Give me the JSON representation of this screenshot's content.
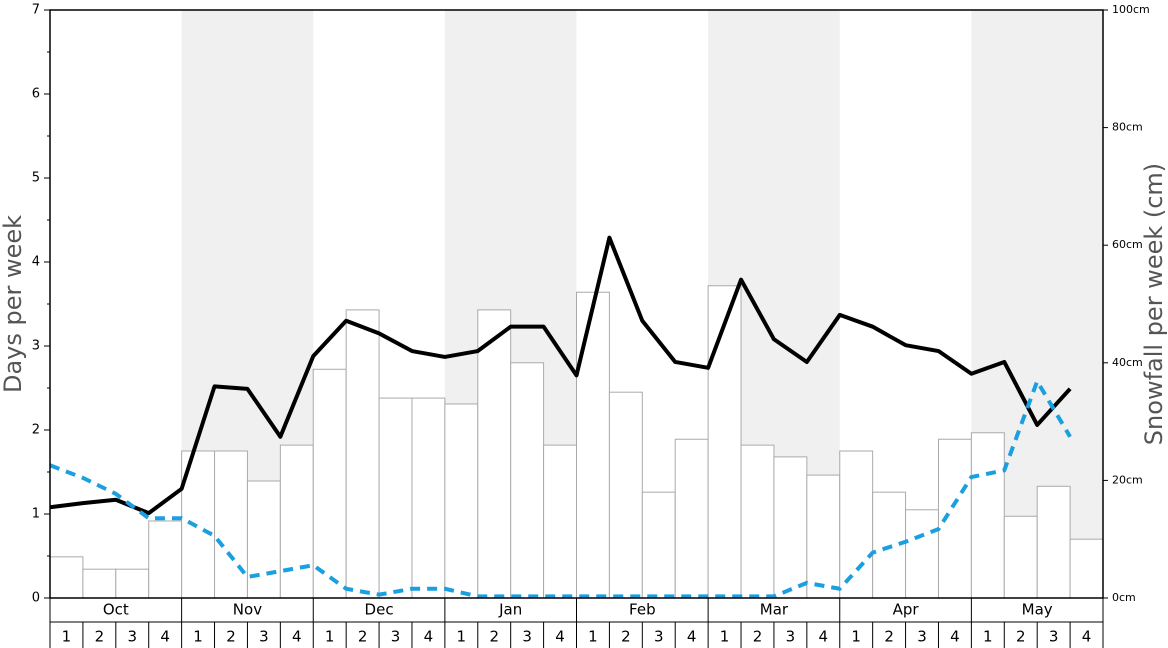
{
  "chart_data": {
    "type": "bar",
    "y_label": "Days per week",
    "y2_label": "Snowfall per week (cm)",
    "months": [
      "Oct",
      "Nov",
      "Dec",
      "Jan",
      "Feb",
      "Mar",
      "Apr",
      "May"
    ],
    "categories": [
      "1",
      "2",
      "3",
      "4",
      "1",
      "2",
      "3",
      "4",
      "1",
      "2",
      "3",
      "4",
      "1",
      "2",
      "3",
      "4",
      "1",
      "2",
      "3",
      "4",
      "1",
      "2",
      "3",
      "4",
      "1",
      "2",
      "3",
      "4",
      "1",
      "2",
      "3",
      "4"
    ],
    "ylim": [
      0,
      7
    ],
    "yticks": [
      0,
      1,
      2,
      3,
      4,
      5,
      6,
      7
    ],
    "y2lim": [
      0,
      100
    ],
    "y2ticks": [
      {
        "value": 0,
        "label": "0cm"
      },
      {
        "value": 20,
        "label": "20cm"
      },
      {
        "value": 40,
        "label": "40cm"
      },
      {
        "value": 60,
        "label": "60cm"
      },
      {
        "value": 80,
        "label": "80cm"
      },
      {
        "value": 100,
        "label": "100cm"
      }
    ],
    "series": [
      {
        "type": "bar",
        "axis": "y2",
        "color": "#ffffff",
        "values": [
          7.0,
          4.9,
          4.9,
          13.1,
          25.0,
          25.0,
          19.9,
          26.0,
          38.9,
          49.0,
          34.0,
          34.0,
          33.0,
          49.0,
          40.0,
          26.0,
          52.0,
          35.0,
          18.0,
          27.0,
          53.1,
          26.0,
          24.0,
          20.9,
          25.0,
          18.0,
          15.0,
          27.0,
          28.1,
          13.9,
          19.0,
          10.0
        ]
      },
      {
        "type": "line",
        "color": "#000000",
        "values": [
          1.08,
          1.13,
          1.17,
          1.01,
          1.3,
          2.52,
          2.49,
          1.92,
          2.88,
          3.3,
          3.15,
          2.94,
          2.87,
          2.94,
          3.23,
          3.23,
          2.65,
          4.29,
          3.3,
          2.81,
          2.74,
          3.79,
          3.08,
          2.81,
          3.37,
          3.23,
          3.01,
          2.94,
          2.67,
          2.81,
          2.06,
          2.49
        ]
      },
      {
        "type": "line",
        "dashed": true,
        "color": "#1a9fe0",
        "values": [
          1.58,
          1.43,
          1.24,
          0.95,
          0.95,
          0.74,
          0.25,
          0.32,
          0.39,
          0.11,
          0.04,
          0.11,
          0.11,
          0.02,
          0.02,
          0.02,
          0.02,
          0.02,
          0.02,
          0.02,
          0.02,
          0.02,
          0.02,
          0.18,
          0.11,
          0.54,
          0.67,
          0.82,
          1.44,
          1.52,
          2.58,
          1.92
        ]
      }
    ]
  }
}
